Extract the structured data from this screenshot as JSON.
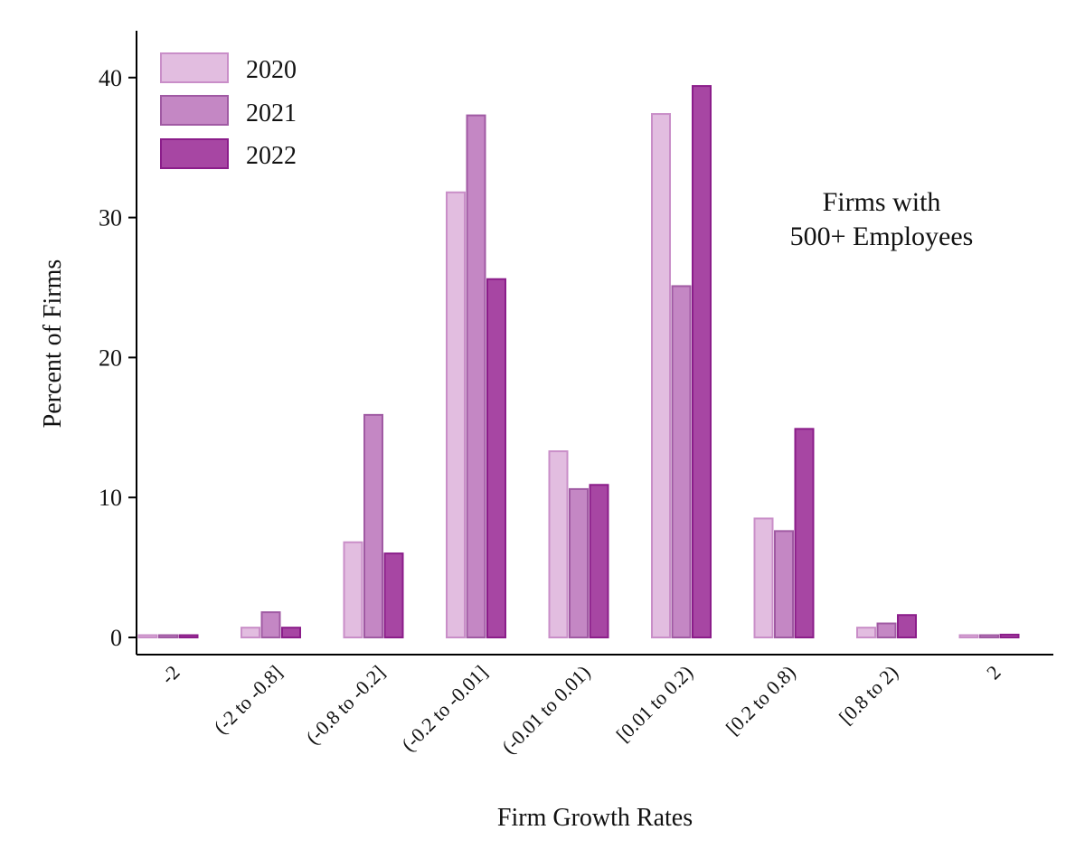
{
  "chart_data": {
    "type": "bar",
    "title": "",
    "xlabel": "Firm Growth Rates",
    "ylabel": "Percent of Firms",
    "ylim": [
      0,
      42
    ],
    "yticks": [
      0,
      10,
      20,
      30,
      40
    ],
    "grid": false,
    "legend_position": "top-left",
    "annotation_lines": [
      "Firms with",
      "500+ Employees"
    ],
    "categories": [
      "-2",
      "(-2 to -0.8]",
      "(-0.8 to -0.2]",
      "(-0.2 to -0.01]",
      "(-0.01 to 0.01)",
      "[0.01 to 0.2)",
      "[0.2 to 0.8)",
      "[0.8 to 2)",
      "2"
    ],
    "series": [
      {
        "name": "2020",
        "color": "#e2bde0",
        "stroke": "#c98ec8",
        "values": [
          0.1,
          0.7,
          6.8,
          31.8,
          13.3,
          37.4,
          8.5,
          0.7,
          0.1
        ]
      },
      {
        "name": "2021",
        "color": "#c487c4",
        "stroke": "#a05aa3",
        "values": [
          0.1,
          1.8,
          15.9,
          37.3,
          10.6,
          25.1,
          7.6,
          1.0,
          0.1
        ]
      },
      {
        "name": "2022",
        "color": "#a746a3",
        "stroke": "#8b1d8a",
        "values": [
          0.1,
          0.7,
          6.0,
          25.6,
          10.9,
          39.4,
          14.9,
          1.6,
          0.2
        ]
      }
    ]
  }
}
